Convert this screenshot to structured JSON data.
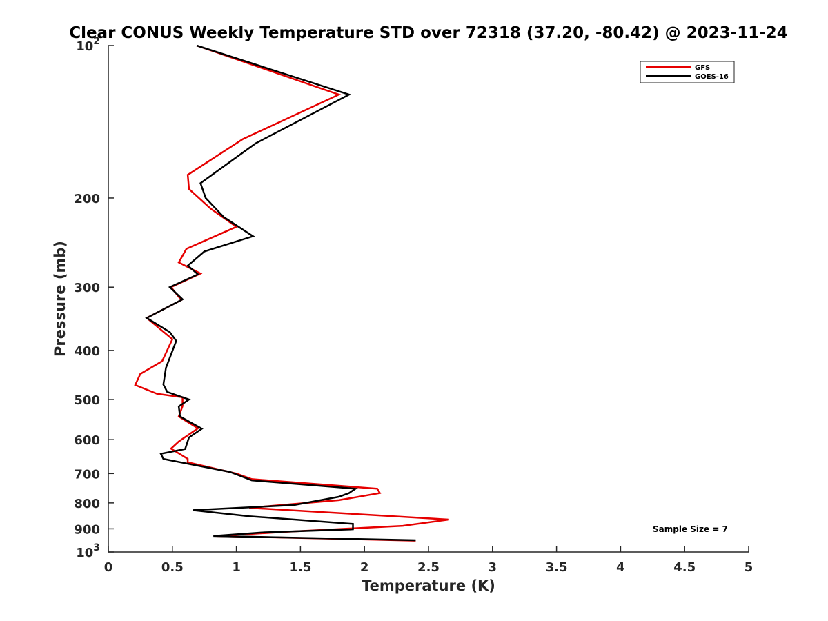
{
  "chart_data": {
    "type": "line",
    "title": "Clear CONUS Weekly Temperature STD over 72318 (37.20, -80.42) @ 2023-11-24",
    "xlabel": "Temperature (K)",
    "ylabel": "Pressure (mb)",
    "xlim": [
      0,
      5
    ],
    "ylim": [
      100,
      1000
    ],
    "y_scale": "log",
    "y_reversed": true,
    "grid": false,
    "legend_position": "top-right",
    "x_ticks": [
      0,
      0.5,
      1,
      1.5,
      2,
      2.5,
      3,
      3.5,
      4,
      4.5,
      5
    ],
    "x_tick_labels": [
      "0",
      "0.5",
      "1",
      "1.5",
      "2",
      "2.5",
      "3",
      "3.5",
      "4",
      "4.5",
      "5"
    ],
    "y_ticks": [
      {
        "value": 100,
        "base": "10",
        "exp": "2",
        "label": ""
      },
      {
        "value": 200,
        "base": "",
        "exp": "",
        "label": "200"
      },
      {
        "value": 300,
        "base": "",
        "exp": "",
        "label": "300"
      },
      {
        "value": 400,
        "base": "",
        "exp": "",
        "label": "400"
      },
      {
        "value": 500,
        "base": "",
        "exp": "",
        "label": "500"
      },
      {
        "value": 600,
        "base": "",
        "exp": "",
        "label": "600"
      },
      {
        "value": 700,
        "base": "",
        "exp": "",
        "label": "700"
      },
      {
        "value": 800,
        "base": "",
        "exp": "",
        "label": "800"
      },
      {
        "value": 900,
        "base": "",
        "exp": "",
        "label": "900"
      },
      {
        "value": 1000,
        "base": "10",
        "exp": "3",
        "label": ""
      }
    ],
    "annotation": "Sample Size = 7",
    "series": [
      {
        "name": "GFS",
        "color": "#e60000",
        "points": [
          [
            0.69,
            100
          ],
          [
            1.8,
            125
          ],
          [
            1.05,
            153
          ],
          [
            0.62,
            180
          ],
          [
            0.63,
            192
          ],
          [
            0.8,
            210
          ],
          [
            1.0,
            228
          ],
          [
            0.61,
            252
          ],
          [
            0.55,
            268
          ],
          [
            0.72,
            282
          ],
          [
            0.49,
            300
          ],
          [
            0.57,
            318
          ],
          [
            0.3,
            345
          ],
          [
            0.5,
            380
          ],
          [
            0.42,
            420
          ],
          [
            0.25,
            445
          ],
          [
            0.21,
            468
          ],
          [
            0.38,
            487
          ],
          [
            0.58,
            495
          ],
          [
            0.58,
            515
          ],
          [
            0.55,
            540
          ],
          [
            0.7,
            570
          ],
          [
            0.55,
            605
          ],
          [
            0.49,
            625
          ],
          [
            0.62,
            655
          ],
          [
            0.62,
            665
          ],
          [
            1.0,
            700
          ],
          [
            1.12,
            718
          ],
          [
            2.1,
            750
          ],
          [
            2.12,
            765
          ],
          [
            1.8,
            790
          ],
          [
            1.1,
            818
          ],
          [
            2.66,
            863
          ],
          [
            2.3,
            888
          ],
          [
            1.4,
            912
          ],
          [
            0.85,
            930
          ],
          [
            2.4,
            950
          ]
        ]
      },
      {
        "name": "GOES-16",
        "color": "#000000",
        "points": [
          [
            0.69,
            100
          ],
          [
            1.88,
            125
          ],
          [
            1.15,
            156
          ],
          [
            0.72,
            187
          ],
          [
            0.76,
            200
          ],
          [
            0.9,
            218
          ],
          [
            1.13,
            238
          ],
          [
            0.75,
            255
          ],
          [
            0.62,
            272
          ],
          [
            0.7,
            283
          ],
          [
            0.48,
            300
          ],
          [
            0.58,
            317
          ],
          [
            0.3,
            345
          ],
          [
            0.48,
            368
          ],
          [
            0.53,
            383
          ],
          [
            0.45,
            433
          ],
          [
            0.43,
            467
          ],
          [
            0.46,
            483
          ],
          [
            0.63,
            500
          ],
          [
            0.55,
            516
          ],
          [
            0.56,
            540
          ],
          [
            0.73,
            571
          ],
          [
            0.63,
            594
          ],
          [
            0.6,
            626
          ],
          [
            0.41,
            640
          ],
          [
            0.43,
            655
          ],
          [
            0.95,
            695
          ],
          [
            1.12,
            722
          ],
          [
            1.93,
            750
          ],
          [
            1.88,
            765
          ],
          [
            1.8,
            778
          ],
          [
            1.45,
            808
          ],
          [
            0.66,
            827
          ],
          [
            1.1,
            850
          ],
          [
            1.91,
            880
          ],
          [
            1.91,
            902
          ],
          [
            1.2,
            915
          ],
          [
            0.82,
            930
          ],
          [
            2.4,
            948
          ]
        ]
      }
    ]
  }
}
